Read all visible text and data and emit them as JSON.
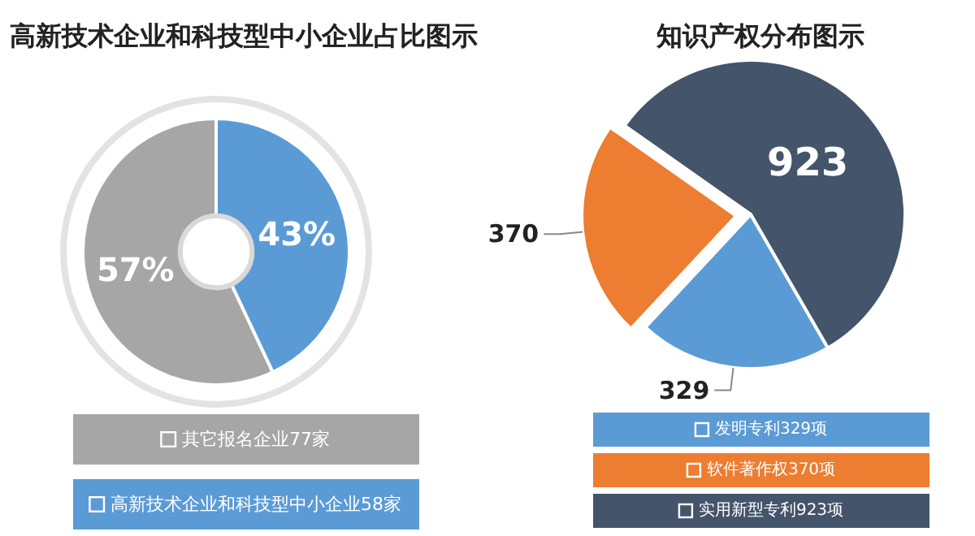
{
  "chart_data": [
    {
      "type": "donut",
      "title": "高新技术企业和科技型中小企业占比图示",
      "categories": [
        "其它报名企业77家",
        "高新技术企业和科技型中小企业58家"
      ],
      "values": [
        57,
        43
      ],
      "colors": [
        "#a6a6a6",
        "#5b9bd5"
      ],
      "value_labels": [
        "57%",
        "43%"
      ],
      "legend": "bottom"
    },
    {
      "type": "pie",
      "title": "知识产权分布图示",
      "categories": [
        "发明专利329项",
        "软件著作权370项",
        "实用新型专利923项"
      ],
      "values": [
        329,
        370,
        923
      ],
      "colors": [
        "#5b9bd5",
        "#ed7d31",
        "#44546a"
      ],
      "data_labels": true,
      "legend": "bottom"
    }
  ]
}
